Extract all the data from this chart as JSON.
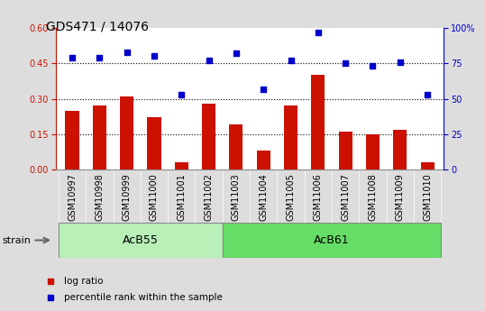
{
  "title": "GDS471 / 14076",
  "samples": [
    "GSM10997",
    "GSM10998",
    "GSM10999",
    "GSM11000",
    "GSM11001",
    "GSM11002",
    "GSM11003",
    "GSM11004",
    "GSM11005",
    "GSM11006",
    "GSM11007",
    "GSM11008",
    "GSM11009",
    "GSM11010"
  ],
  "log_ratio": [
    0.25,
    0.27,
    0.31,
    0.22,
    0.03,
    0.28,
    0.19,
    0.08,
    0.27,
    0.4,
    0.16,
    0.15,
    0.17,
    0.03
  ],
  "percentile_rank": [
    79,
    79,
    83,
    80,
    53,
    77,
    82,
    57,
    77,
    97,
    75,
    73,
    76,
    53
  ],
  "groups": [
    {
      "label": "AcB55",
      "start": 0,
      "end": 5
    },
    {
      "label": "AcB61",
      "start": 6,
      "end": 13
    }
  ],
  "group_colors": [
    "#b8f0b8",
    "#66dd66"
  ],
  "bar_color": "#cc1100",
  "scatter_color": "#0000cc",
  "ylim_left": [
    0,
    0.6
  ],
  "ylim_right": [
    0,
    100
  ],
  "yticks_left": [
    0,
    0.15,
    0.3,
    0.45,
    0.6
  ],
  "yticks_right": [
    0,
    25,
    50,
    75,
    100
  ],
  "hlines": [
    0.15,
    0.3,
    0.45
  ],
  "strain_label": "strain",
  "legend_items": [
    {
      "label": "log ratio",
      "color": "#cc1100"
    },
    {
      "label": "percentile rank within the sample",
      "color": "#0000cc"
    }
  ],
  "bg_color": "#dddddd",
  "plot_bg": "#ffffff",
  "tick_label_bg": "#cccccc",
  "title_fontsize": 10,
  "tick_fontsize": 7,
  "group_fontsize": 9,
  "legend_fontsize": 7.5
}
